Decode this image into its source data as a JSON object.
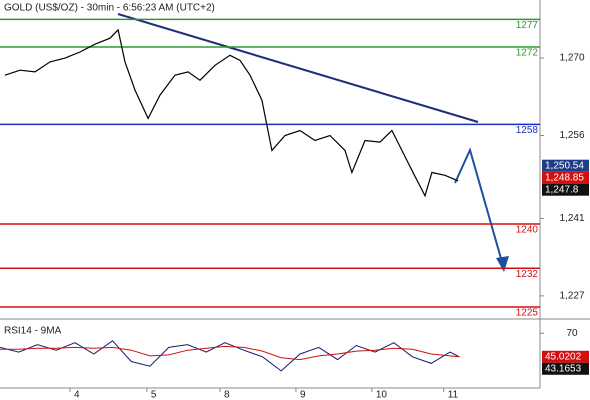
{
  "chart_data": [
    {
      "type": "line",
      "title": "GOLD (US$/OZ) - 30min - 6:56:23 AM (UTC+2)",
      "color": "#000000",
      "x": [
        1.6,
        6.4,
        11.2,
        16,
        20.8,
        25.6,
        30.4,
        35.2,
        37.8,
        40,
        43.2,
        47.4,
        51.2,
        56,
        60.2,
        64,
        68.8,
        73.6,
        76.8,
        80,
        83.8,
        87,
        91.2,
        96,
        100.8,
        105.6,
        110.4,
        112.6,
        116.8,
        121.6,
        125.4,
        128.6,
        131.8,
        136,
        138.2,
        142.4,
        146.6
      ],
      "values": [
        1266.9,
        1267.8,
        1267.5,
        1269.3,
        1270,
        1271.1,
        1272.5,
        1273.6,
        1275.1,
        1269.3,
        1264.2,
        1259.1,
        1263.3,
        1266.9,
        1267.5,
        1266,
        1268.7,
        1270.5,
        1269.6,
        1266.9,
        1262.4,
        1253.3,
        1256,
        1256.9,
        1255.1,
        1256,
        1253.3,
        1249.3,
        1255.1,
        1254.8,
        1256.9,
        1253.3,
        1249.7,
        1245.1,
        1249.3,
        1248.8,
        1247.8
      ],
      "xlim": [
        0,
        172.8
      ],
      "xticks": [
        {
          "value": 22.4,
          "label": "4"
        },
        {
          "value": 47,
          "label": "5"
        },
        {
          "value": 70.4,
          "label": "8"
        },
        {
          "value": 94.7,
          "label": "9"
        },
        {
          "value": 119,
          "label": "10"
        },
        {
          "value": 142,
          "label": "11"
        }
      ],
      "ylim": [
        1223,
        1280.5
      ],
      "yticks": [
        {
          "value": 1227,
          "label": "1,227"
        },
        {
          "value": 1241,
          "label": "1,241"
        },
        {
          "value": 1256,
          "label": "1,256"
        },
        {
          "value": 1270,
          "label": "1,270"
        }
      ],
      "levels": [
        {
          "value": 1277,
          "color": "#2e9a2e"
        },
        {
          "value": 1272,
          "color": "#2e9a2e"
        },
        {
          "value": 1258,
          "color": "#1a2fc0"
        },
        {
          "value": 1240,
          "color": "#d01010"
        },
        {
          "value": 1232,
          "color": "#d01010"
        },
        {
          "value": 1225,
          "color": "#d01010"
        }
      ],
      "price_labels": [
        {
          "value": 1250.54,
          "label": "1,250.54",
          "color": "#1f3c88"
        },
        {
          "value": 1248.85,
          "label": "1,248.85",
          "color": "#d01010"
        },
        {
          "value": 1247.8,
          "label": "1,247.8",
          "color": "#111111"
        }
      ]
    },
    {
      "type": "line",
      "title": "RSI14 - 9MA",
      "x": [
        0,
        6,
        12,
        18,
        24,
        30,
        36,
        42,
        48,
        54,
        60,
        66,
        72,
        78,
        84,
        90,
        96,
        102,
        108,
        114,
        120,
        126,
        132,
        138,
        144,
        147
      ],
      "series": [
        {
          "color": "#1a1a6e",
          "values": [
            55,
            50,
            58,
            52,
            60,
            48,
            62,
            40,
            35,
            55,
            58,
            50,
            60,
            52,
            45,
            30,
            48,
            55,
            42,
            57,
            50,
            60,
            45,
            38,
            50,
            45
          ]
        },
        {
          "color": "#d01010",
          "values": [
            53,
            53,
            54,
            54,
            55,
            54,
            55,
            52,
            46,
            47,
            52,
            54,
            56,
            55,
            51,
            44,
            42,
            46,
            48,
            51,
            52,
            54,
            53,
            48,
            46,
            45
          ]
        }
      ],
      "xlim": [
        0,
        172.8
      ],
      "ylim": [
        15,
        82
      ],
      "yticks": [
        70
      ],
      "price_labels": [
        {
          "value": 45.0202,
          "color": "#d01010"
        },
        {
          "value": 43.1653,
          "color": "#111111"
        }
      ]
    }
  ]
}
